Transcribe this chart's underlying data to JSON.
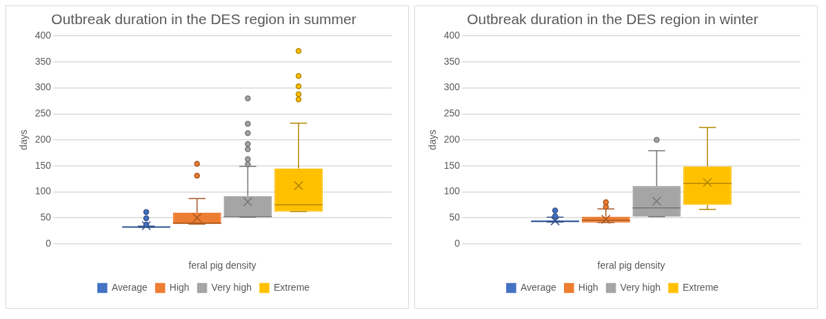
{
  "chart_data": [
    {
      "type": "box",
      "title": "Outbreak duration in the DES region in summer",
      "xlabel": "feral pig density",
      "ylabel": "days",
      "categories": [
        null
      ],
      "ylim": [
        0,
        400
      ],
      "yticks": [
        0,
        50,
        100,
        150,
        200,
        250,
        300,
        350,
        400
      ],
      "grid": "y",
      "legend": "bottom",
      "series": [
        {
          "name": "Average",
          "color": "#4472c4",
          "boxes": [
            {
              "low": 32,
              "q1": 32,
              "median": 32,
              "q3": 34,
              "high": 34,
              "mean": 35,
              "outliers": [
                37,
                49,
                61
              ]
            }
          ]
        },
        {
          "name": "High",
          "color": "#ed7d31",
          "boxes": [
            {
              "low": 38,
              "q1": 38,
              "median": 40,
              "q3": 60,
              "high": 87,
              "mean": 50,
              "outliers": [
                131,
                154
              ]
            }
          ]
        },
        {
          "name": "Very high",
          "color": "#a5a5a5",
          "boxes": [
            {
              "low": 51,
              "q1": 51,
              "median": 52,
              "q3": 92,
              "high": 149,
              "mean": 81,
              "outliers": [
                153,
                163,
                182,
                192,
                213,
                231,
                280
              ]
            }
          ]
        },
        {
          "name": "Extreme",
          "color": "#ffc000",
          "boxes": [
            {
              "low": 62,
              "q1": 62,
              "median": 75,
              "q3": 145,
              "high": 232,
              "mean": 112,
              "outliers": [
                278,
                288,
                303,
                323,
                371
              ]
            }
          ]
        }
      ]
    },
    {
      "type": "box",
      "title": "Outbreak duration in the DES region in winter",
      "xlabel": "feral pig density",
      "ylabel": "days",
      "categories": [
        null
      ],
      "ylim": [
        0,
        400
      ],
      "yticks": [
        0,
        50,
        100,
        150,
        200,
        250,
        300,
        350,
        400
      ],
      "grid": "y",
      "legend": "bottom",
      "series": [
        {
          "name": "Average",
          "color": "#4472c4",
          "boxes": [
            {
              "low": 42,
              "q1": 42,
              "median": 43,
              "q3": 45,
              "high": 51,
              "mean": 44,
              "outliers": [
                53,
                64
              ]
            }
          ]
        },
        {
          "name": "High",
          "color": "#ed7d31",
          "boxes": [
            {
              "low": 41,
              "q1": 41,
              "median": 45,
              "q3": 52,
              "high": 67,
              "mean": 47,
              "outliers": [
                71,
                80
              ]
            }
          ]
        },
        {
          "name": "Very high",
          "color": "#a5a5a5",
          "boxes": [
            {
              "low": 52,
              "q1": 52,
              "median": 69,
              "q3": 111,
              "high": 179,
              "mean": 82,
              "outliers": [
                200
              ]
            }
          ]
        },
        {
          "name": "Extreme",
          "color": "#ffc000",
          "boxes": [
            {
              "low": 66,
              "q1": 75,
              "median": 116,
              "q3": 149,
              "high": 224,
              "mean": 118
            }
          ]
        }
      ]
    }
  ]
}
